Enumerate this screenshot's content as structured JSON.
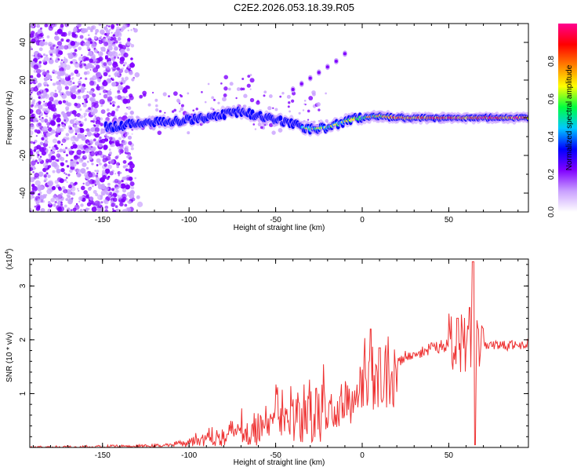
{
  "page": {
    "title": "C2E2.2026.053.18.39.R05"
  },
  "chart_data": [
    {
      "type": "heatmap",
      "name": "spectrogram",
      "xlabel": "Height of straight line (km)",
      "ylabel": "Frequency (Hz)",
      "xlim": [
        -192,
        96
      ],
      "ylim": [
        -50,
        50
      ],
      "x_ticks": [
        -150,
        -100,
        -50,
        0,
        50
      ],
      "x_tick_labels": [
        "-150",
        "-100",
        "-50",
        "0",
        "50"
      ],
      "y_ticks": [
        -40,
        -20,
        0,
        20,
        40
      ],
      "y_tick_labels": [
        "-40",
        "-20",
        "0",
        "20",
        "40"
      ],
      "colorbar": {
        "label": "Normalized spectral amplitude",
        "range": [
          0,
          1
        ],
        "ticks": [
          0.0,
          0.2,
          0.4,
          0.6,
          0.8
        ],
        "tick_labels": [
          "0.0",
          "0.2",
          "0.4",
          "0.6",
          "0.8"
        ],
        "colors": [
          "#ffffff",
          "#c9a0ff",
          "#8000ff",
          "#0000ff",
          "#00c8ff",
          "#00ff40",
          "#ffff00",
          "#ff8000",
          "#ff0000",
          "#ff0090"
        ]
      },
      "ridge": {
        "x": [
          -145,
          -130,
          -110,
          -90,
          -80,
          -70,
          -60,
          -50,
          -40,
          -35,
          -30,
          -20,
          -10,
          0,
          10,
          20,
          40,
          60,
          80,
          96
        ],
        "freq": [
          -5,
          -3,
          -2,
          0,
          2,
          3,
          1,
          -1,
          -3,
          -5,
          -6,
          -5,
          -2,
          0,
          1,
          0,
          0,
          0,
          0,
          0
        ],
        "amplitude": [
          0.25,
          0.35,
          0.4,
          0.4,
          0.42,
          0.45,
          0.4,
          0.38,
          0.45,
          0.55,
          0.6,
          0.6,
          0.65,
          0.7,
          0.75,
          0.85,
          0.9,
          0.9,
          0.92,
          0.9
        ]
      },
      "harmonic": {
        "x": [
          -40,
          -35,
          -30,
          -25,
          -20,
          -15,
          -10
        ],
        "freq": [
          15,
          18,
          21,
          24,
          27,
          30,
          34
        ]
      }
    },
    {
      "type": "line",
      "name": "snr",
      "xlabel": "Height of straight line (km)",
      "ylabel": "SNR (10 * v/v)",
      "scale_label": "(x10",
      "scale_exponent": "4",
      "xlim": [
        -192,
        96
      ],
      "ylim": [
        0,
        3.5
      ],
      "x_ticks": [
        -150,
        -100,
        -50,
        0,
        50
      ],
      "x_tick_labels": [
        "-150",
        "-100",
        "-50",
        "0",
        "50"
      ],
      "y_ticks": [
        1,
        2,
        3
      ],
      "y_tick_labels": [
        "1",
        "2",
        "3"
      ],
      "color": "#ee3333",
      "trend": {
        "x": [
          -192,
          -130,
          -110,
          -100,
          -90,
          -80,
          -70,
          -60,
          -50,
          -40,
          -30,
          -20,
          -10,
          0,
          5,
          10,
          20,
          30,
          40,
          50,
          60,
          70,
          80,
          96
        ],
        "y": [
          0.0,
          0.02,
          0.05,
          0.12,
          0.18,
          0.25,
          0.32,
          0.38,
          0.45,
          0.5,
          0.55,
          0.65,
          0.8,
          1.05,
          1.2,
          1.4,
          1.6,
          1.75,
          1.85,
          1.9,
          1.9,
          1.88,
          1.88,
          1.92
        ]
      },
      "peaks": [
        {
          "x": 5,
          "y": 2.2
        },
        {
          "x": 10,
          "y": 1.85
        },
        {
          "x": 55,
          "y": 2.4
        },
        {
          "x": 62,
          "y": 2.6
        },
        {
          "x": 64,
          "y": 3.45
        },
        {
          "x": 65,
          "y": 0.05
        }
      ]
    }
  ]
}
